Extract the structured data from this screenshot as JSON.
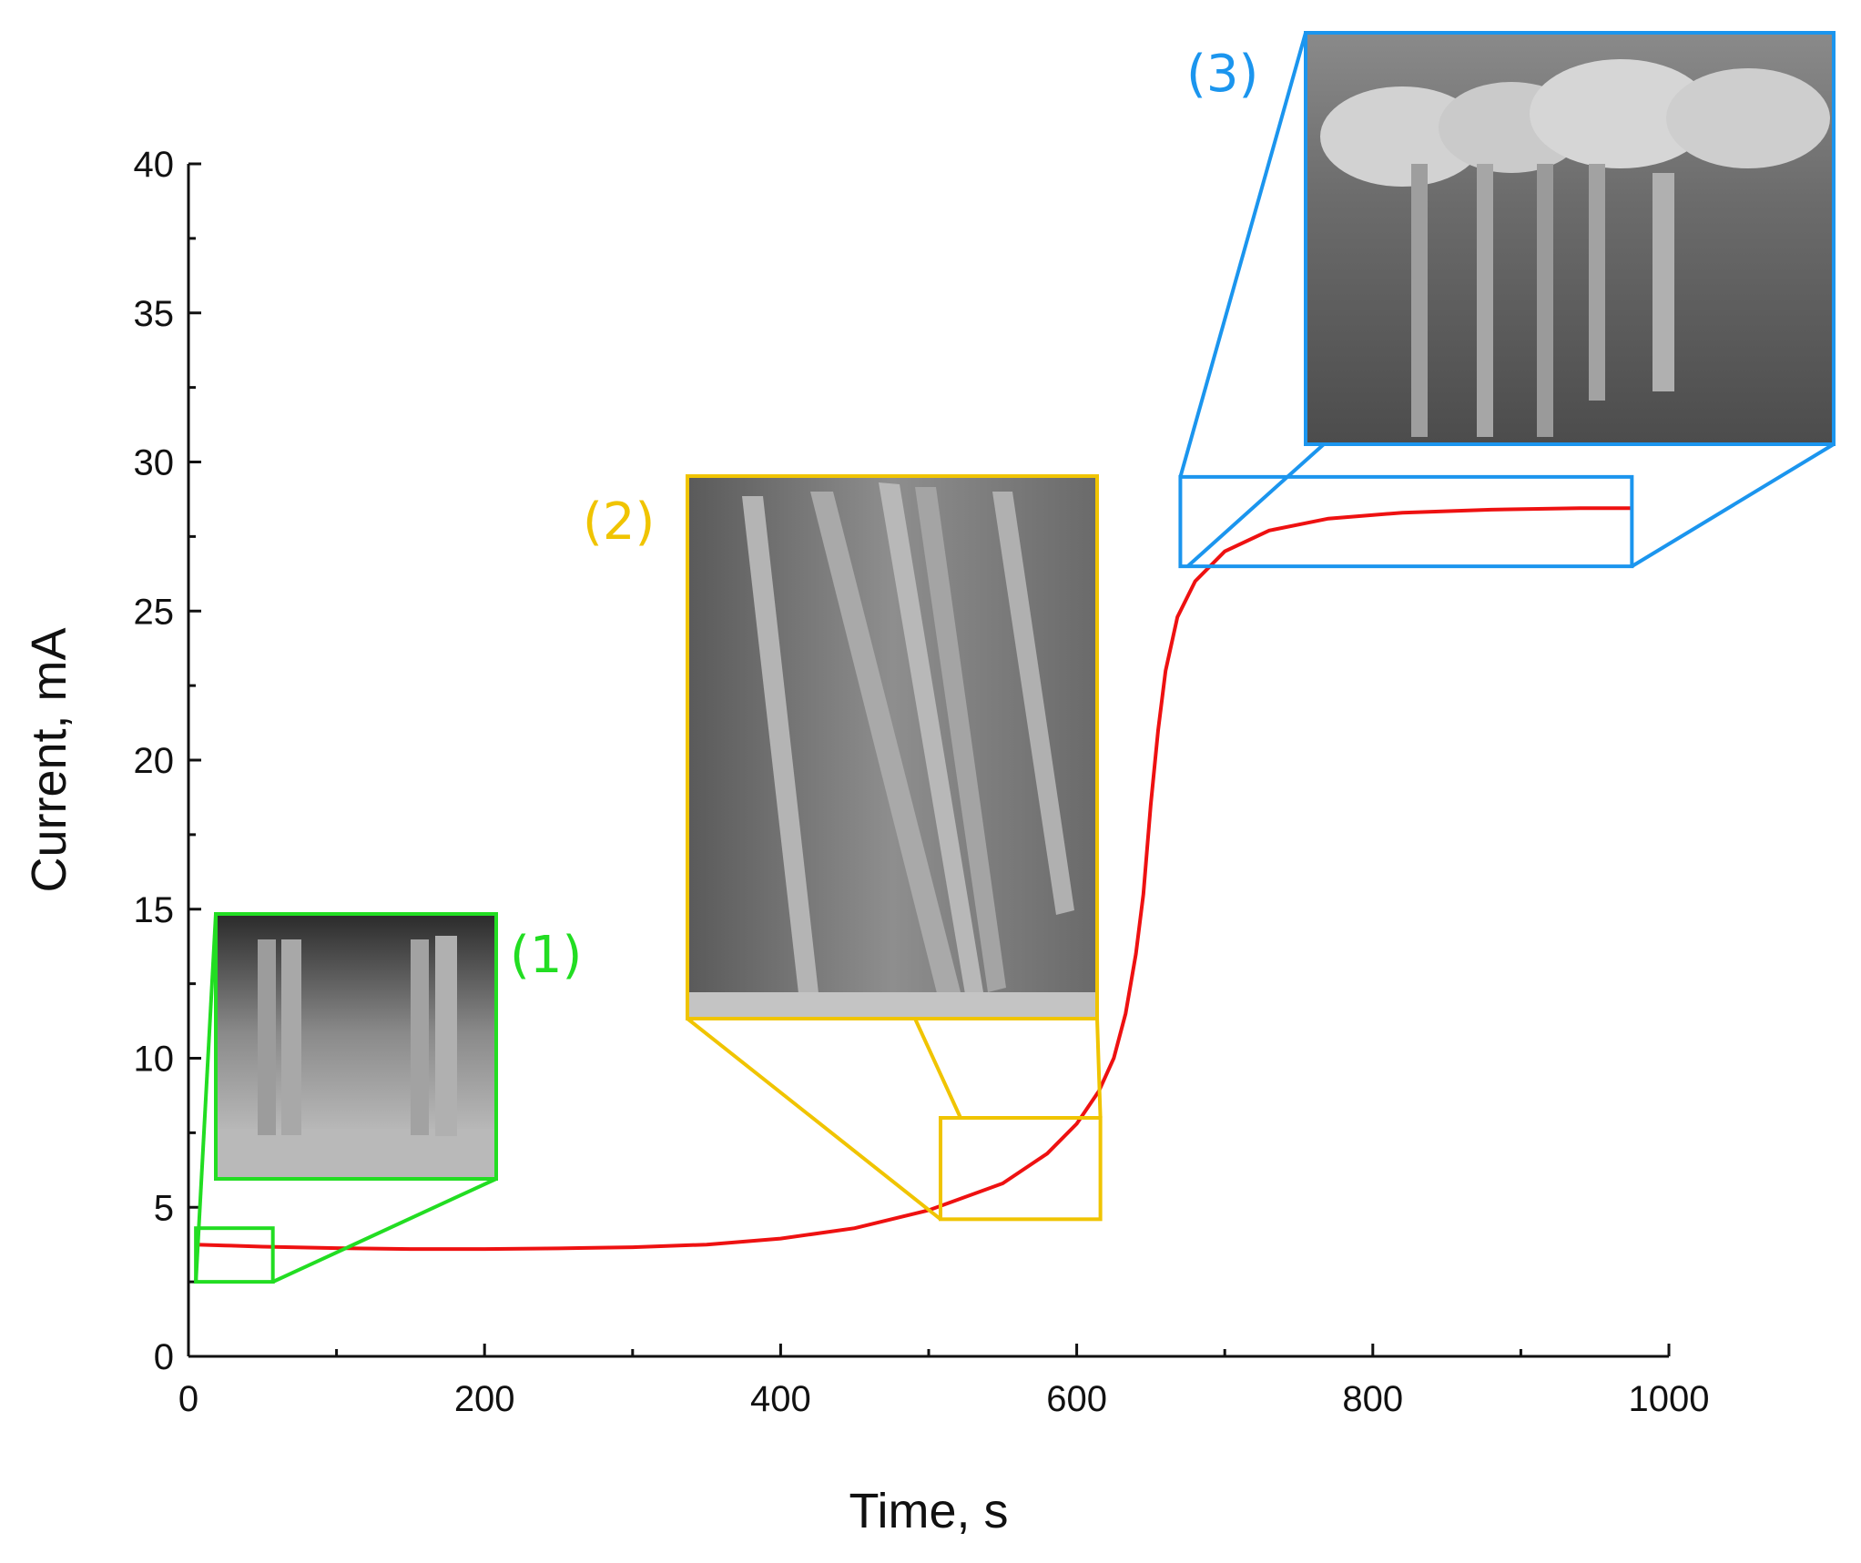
{
  "chart_data": {
    "type": "line",
    "xlabel": "Time, s",
    "ylabel": "Current, mA",
    "xlim": [
      0,
      1000
    ],
    "ylim": [
      0,
      40
    ],
    "xticks": [
      0,
      200,
      400,
      600,
      800,
      1000
    ],
    "yticks": [
      0,
      5,
      10,
      15,
      20,
      25,
      30,
      35,
      40
    ],
    "xtick_labels": [
      "0",
      "200",
      "400",
      "600",
      "800",
      "1000"
    ],
    "ytick_labels": [
      "0",
      "5",
      "10",
      "15",
      "20",
      "25",
      "30",
      "35",
      "40"
    ],
    "grid": false,
    "series": [
      {
        "color": "#ee1111",
        "points": [
          [
            5,
            3.75
          ],
          [
            25,
            3.72
          ],
          [
            50,
            3.68
          ],
          [
            100,
            3.63
          ],
          [
            150,
            3.6
          ],
          [
            200,
            3.6
          ],
          [
            250,
            3.62
          ],
          [
            300,
            3.66
          ],
          [
            350,
            3.75
          ],
          [
            400,
            3.95
          ],
          [
            450,
            4.3
          ],
          [
            500,
            4.9
          ],
          [
            550,
            5.8
          ],
          [
            580,
            6.8
          ],
          [
            600,
            7.8
          ],
          [
            615,
            8.9
          ],
          [
            625,
            10.0
          ],
          [
            633,
            11.5
          ],
          [
            640,
            13.5
          ],
          [
            645,
            15.5
          ],
          [
            650,
            18.5
          ],
          [
            655,
            21.0
          ],
          [
            660,
            23.0
          ],
          [
            668,
            24.8
          ],
          [
            680,
            26.0
          ],
          [
            700,
            27.0
          ],
          [
            730,
            27.7
          ],
          [
            770,
            28.1
          ],
          [
            820,
            28.3
          ],
          [
            880,
            28.4
          ],
          [
            940,
            28.45
          ],
          [
            975,
            28.45
          ]
        ]
      }
    ],
    "insets": [
      {
        "label": "(1)",
        "color": "#22dd22",
        "region": {
          "x": [
            5,
            57
          ],
          "y": [
            2.5,
            4.3
          ]
        }
      },
      {
        "label": "(2)",
        "color": "#f0c400",
        "region": {
          "x": [
            508,
            616
          ],
          "y": [
            4.6,
            8.0
          ]
        }
      },
      {
        "label": "(3)",
        "color": "#1b95ee",
        "region": {
          "x": [
            670,
            975
          ],
          "y": [
            26.5,
            29.5
          ]
        }
      }
    ]
  }
}
